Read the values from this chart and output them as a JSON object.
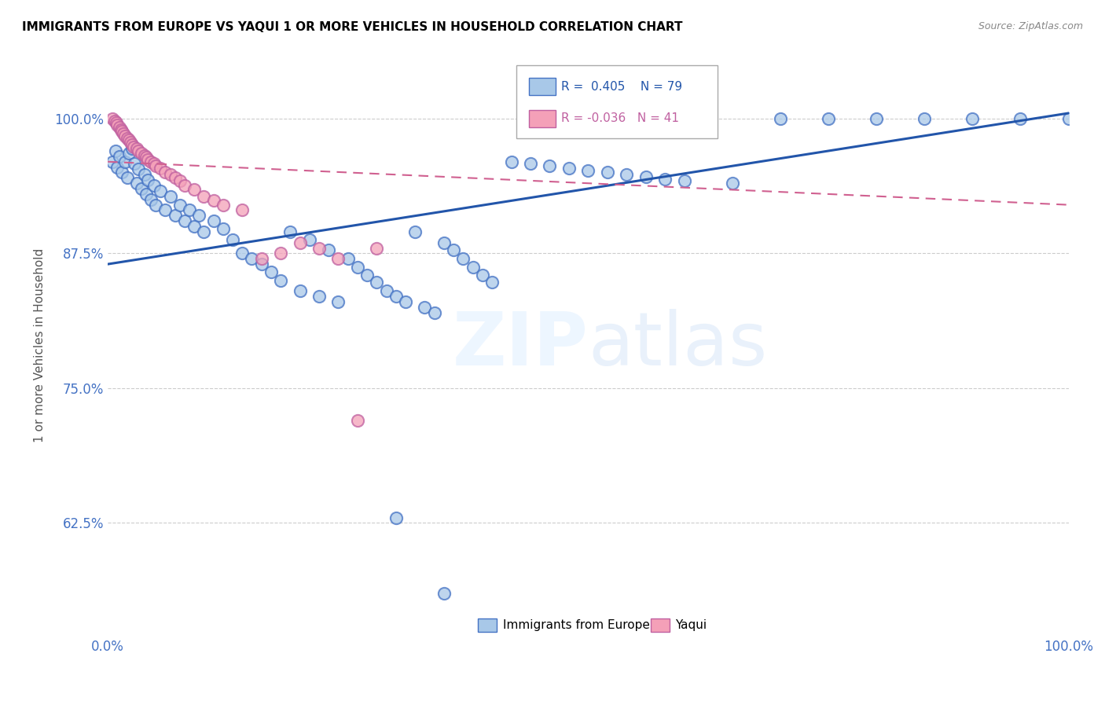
{
  "title": "IMMIGRANTS FROM EUROPE VS YAQUI 1 OR MORE VEHICLES IN HOUSEHOLD CORRELATION CHART",
  "source": "Source: ZipAtlas.com",
  "ylabel": "1 or more Vehicles in Household",
  "ytick_labels": [
    "62.5%",
    "75.0%",
    "87.5%",
    "100.0%"
  ],
  "ytick_values": [
    0.625,
    0.75,
    0.875,
    1.0
  ],
  "xlim": [
    0.0,
    1.0
  ],
  "ylim": [
    0.52,
    1.06
  ],
  "legend_europe_label": "Immigrants from Europe",
  "legend_yaqui_label": "Yaqui",
  "R_europe": 0.405,
  "N_europe": 79,
  "R_yaqui": -0.036,
  "N_yaqui": 41,
  "europe_color": "#a8c8e8",
  "europe_edge_color": "#4472c4",
  "europe_line_color": "#2255aa",
  "yaqui_color": "#f4a0b8",
  "yaqui_edge_color": "#c060a0",
  "yaqui_line_color": "#d06090",
  "blue_scatter_x": [
    0.005,
    0.008,
    0.01,
    0.012,
    0.015,
    0.018,
    0.02,
    0.022,
    0.025,
    0.028,
    0.03,
    0.032,
    0.035,
    0.038,
    0.04,
    0.042,
    0.045,
    0.048,
    0.05,
    0.055,
    0.06,
    0.065,
    0.07,
    0.075,
    0.08,
    0.085,
    0.09,
    0.095,
    0.1,
    0.11,
    0.12,
    0.13,
    0.14,
    0.15,
    0.16,
    0.17,
    0.18,
    0.19,
    0.2,
    0.21,
    0.22,
    0.23,
    0.24,
    0.25,
    0.26,
    0.27,
    0.28,
    0.29,
    0.3,
    0.31,
    0.32,
    0.33,
    0.34,
    0.35,
    0.36,
    0.37,
    0.38,
    0.39,
    0.4,
    0.42,
    0.44,
    0.46,
    0.48,
    0.5,
    0.52,
    0.54,
    0.56,
    0.58,
    0.6,
    0.65,
    0.7,
    0.75,
    0.8,
    0.85,
    0.9,
    0.95,
    1.0,
    0.3,
    0.35
  ],
  "blue_scatter_y": [
    0.96,
    0.97,
    0.955,
    0.965,
    0.95,
    0.96,
    0.945,
    0.968,
    0.972,
    0.958,
    0.94,
    0.953,
    0.935,
    0.948,
    0.93,
    0.943,
    0.925,
    0.938,
    0.92,
    0.933,
    0.915,
    0.928,
    0.91,
    0.92,
    0.905,
    0.915,
    0.9,
    0.91,
    0.895,
    0.905,
    0.898,
    0.888,
    0.875,
    0.87,
    0.865,
    0.858,
    0.85,
    0.895,
    0.84,
    0.888,
    0.835,
    0.878,
    0.83,
    0.87,
    0.862,
    0.855,
    0.848,
    0.84,
    0.835,
    0.83,
    0.895,
    0.825,
    0.82,
    0.885,
    0.878,
    0.87,
    0.862,
    0.855,
    0.848,
    0.96,
    0.958,
    0.956,
    0.954,
    0.952,
    0.95,
    0.948,
    0.946,
    0.944,
    0.942,
    0.94,
    1.0,
    1.0,
    1.0,
    1.0,
    1.0,
    1.0,
    1.0,
    0.63,
    0.56
  ],
  "pink_scatter_x": [
    0.005,
    0.007,
    0.009,
    0.01,
    0.012,
    0.014,
    0.015,
    0.016,
    0.018,
    0.02,
    0.022,
    0.024,
    0.025,
    0.027,
    0.03,
    0.032,
    0.035,
    0.038,
    0.04,
    0.042,
    0.045,
    0.048,
    0.05,
    0.055,
    0.06,
    0.065,
    0.07,
    0.075,
    0.08,
    0.09,
    0.1,
    0.11,
    0.12,
    0.14,
    0.16,
    0.18,
    0.2,
    0.22,
    0.24,
    0.26,
    0.28
  ],
  "pink_scatter_y": [
    1.0,
    0.998,
    0.996,
    0.994,
    0.992,
    0.99,
    0.988,
    0.986,
    0.984,
    0.982,
    0.98,
    0.978,
    0.976,
    0.974,
    0.972,
    0.97,
    0.968,
    0.966,
    0.964,
    0.962,
    0.96,
    0.958,
    0.956,
    0.954,
    0.95,
    0.948,
    0.945,
    0.942,
    0.938,
    0.934,
    0.928,
    0.924,
    0.92,
    0.915,
    0.87,
    0.875,
    0.885,
    0.88,
    0.87,
    0.72,
    0.88
  ],
  "blue_line_x0": 0.0,
  "blue_line_y0": 0.865,
  "blue_line_x1": 1.0,
  "blue_line_y1": 1.005,
  "pink_line_x0": 0.0,
  "pink_line_y0": 0.96,
  "pink_line_x1": 1.0,
  "pink_line_y1": 0.92
}
